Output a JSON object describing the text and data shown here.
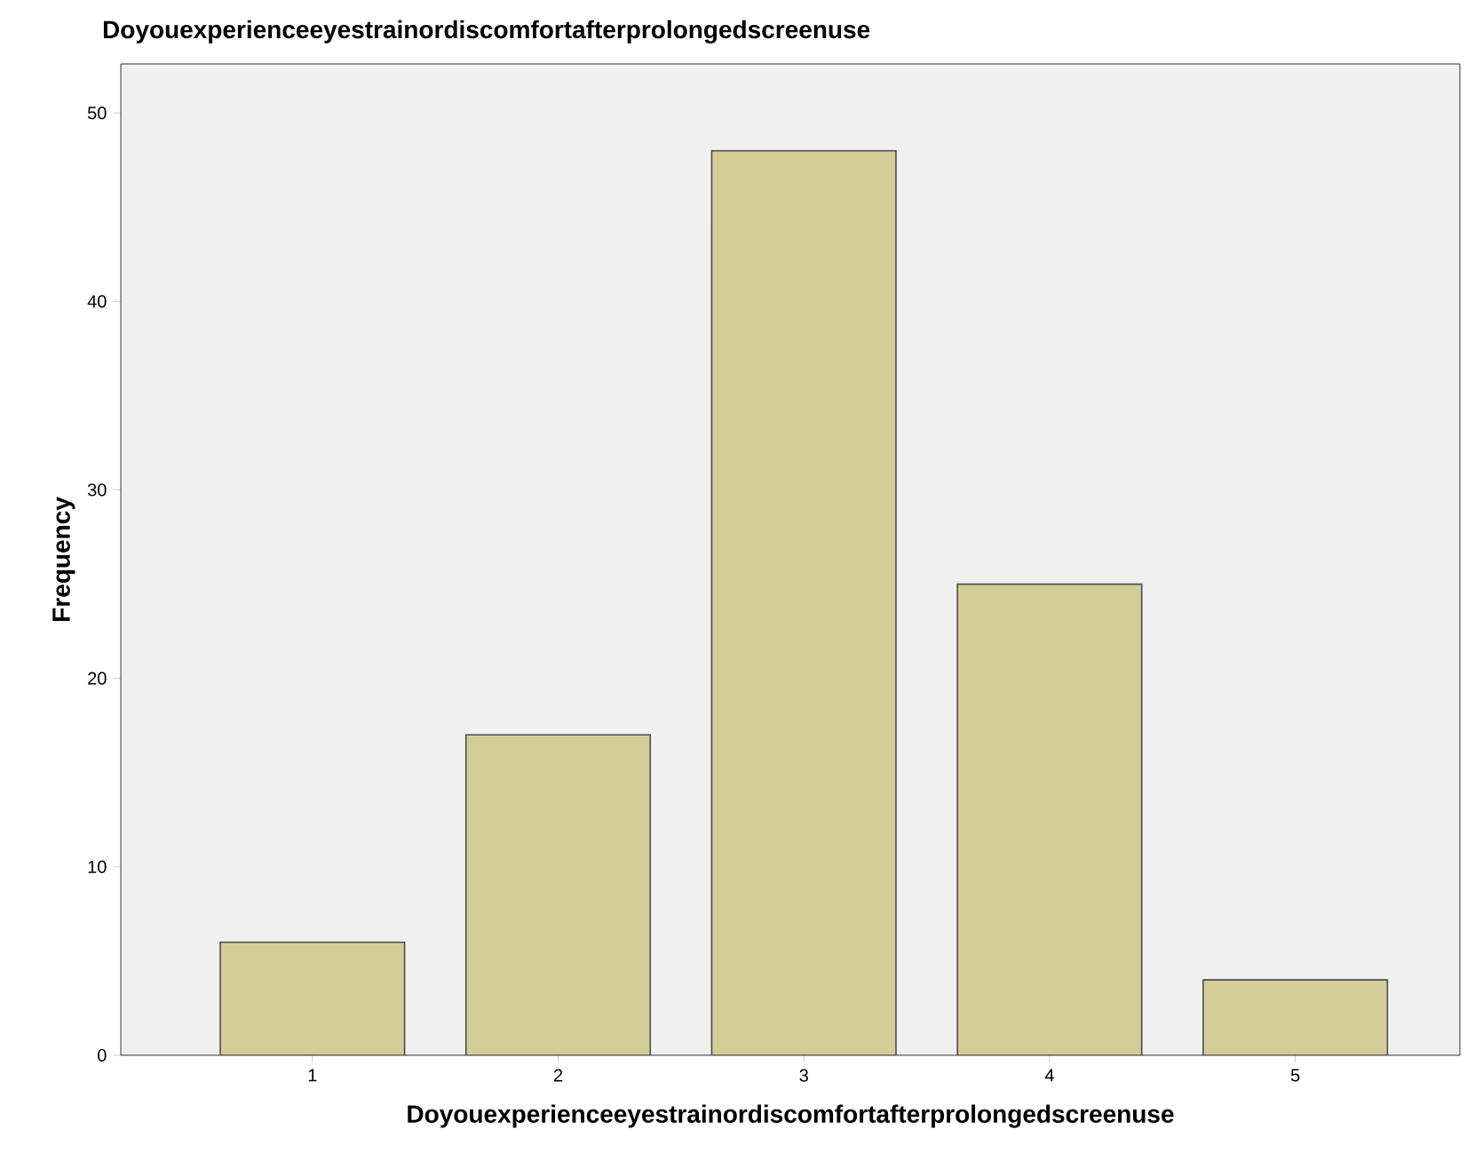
{
  "chart_data": {
    "type": "bar",
    "title": "Doyouexperienceeyestrainordiscomfortafterprolongedscreenuse",
    "xlabel": "Doyouexperienceeyestrainordiscomfortafterprolongedscreenuse",
    "ylabel": "Frequency",
    "categories": [
      "1",
      "2",
      "3",
      "4",
      "5"
    ],
    "values": [
      6,
      17,
      48,
      25,
      4
    ],
    "color": "#d3ce97",
    "ylim": [
      0,
      52.6
    ],
    "yticks": [
      0,
      10,
      20,
      30,
      40,
      50
    ]
  }
}
